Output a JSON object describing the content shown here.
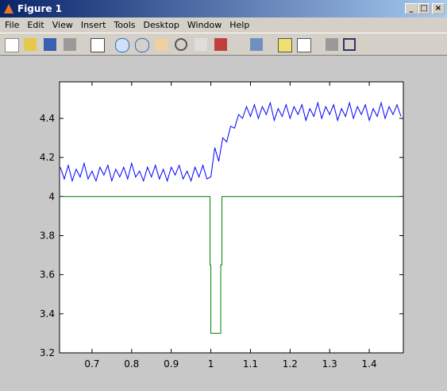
{
  "window": {
    "title": "Figure 1"
  },
  "menu": [
    "File",
    "Edit",
    "View",
    "Insert",
    "Tools",
    "Desktop",
    "Window",
    "Help"
  ],
  "chart_data": {
    "type": "line",
    "xlim": [
      0.618,
      1.486
    ],
    "ylim": [
      3.2,
      4.587
    ],
    "xticks": [
      0.7,
      0.8,
      0.9,
      1,
      1.1,
      1.2,
      1.3,
      1.4
    ],
    "yticks": [
      3.2,
      3.4,
      3.6,
      3.8,
      4,
      4.2,
      4.4
    ],
    "series": [
      {
        "color": "#0000ff",
        "x": [
          0.62,
          0.63,
          0.64,
          0.65,
          0.66,
          0.67,
          0.68,
          0.69,
          0.7,
          0.71,
          0.72,
          0.73,
          0.74,
          0.75,
          0.76,
          0.77,
          0.78,
          0.79,
          0.8,
          0.81,
          0.82,
          0.83,
          0.84,
          0.85,
          0.86,
          0.87,
          0.88,
          0.89,
          0.9,
          0.91,
          0.92,
          0.93,
          0.94,
          0.95,
          0.96,
          0.97,
          0.98,
          0.99,
          1.0,
          1.01,
          1.02,
          1.03,
          1.04,
          1.05,
          1.06,
          1.07,
          1.08,
          1.09,
          1.1,
          1.11,
          1.12,
          1.13,
          1.14,
          1.15,
          1.16,
          1.17,
          1.18,
          1.19,
          1.2,
          1.21,
          1.22,
          1.23,
          1.24,
          1.25,
          1.26,
          1.27,
          1.28,
          1.29,
          1.3,
          1.31,
          1.32,
          1.33,
          1.34,
          1.35,
          1.36,
          1.37,
          1.38,
          1.39,
          1.4,
          1.41,
          1.42,
          1.43,
          1.44,
          1.45,
          1.46,
          1.47,
          1.48
        ],
        "values": [
          4.15,
          4.09,
          4.16,
          4.08,
          4.14,
          4.1,
          4.17,
          4.09,
          4.13,
          4.08,
          4.15,
          4.11,
          4.16,
          4.08,
          4.14,
          4.1,
          4.15,
          4.09,
          4.17,
          4.1,
          4.13,
          4.08,
          4.15,
          4.1,
          4.16,
          4.09,
          4.14,
          4.08,
          4.15,
          4.11,
          4.16,
          4.09,
          4.13,
          4.08,
          4.15,
          4.1,
          4.16,
          4.09,
          4.1,
          4.25,
          4.18,
          4.3,
          4.28,
          4.36,
          4.35,
          4.42,
          4.4,
          4.46,
          4.41,
          4.47,
          4.4,
          4.46,
          4.42,
          4.48,
          4.39,
          4.45,
          4.41,
          4.47,
          4.4,
          4.46,
          4.42,
          4.47,
          4.39,
          4.45,
          4.41,
          4.48,
          4.4,
          4.46,
          4.42,
          4.47,
          4.39,
          4.45,
          4.41,
          4.48,
          4.4,
          4.46,
          4.42,
          4.47,
          4.39,
          4.45,
          4.41,
          4.48,
          4.4,
          4.46,
          4.42,
          4.47,
          4.41
        ]
      },
      {
        "color": "#008000",
        "x": [
          0.618,
          0.998,
          0.998,
          1.0,
          1.0,
          1.025,
          1.025,
          1.028,
          1.028,
          1.486
        ],
        "values": [
          4,
          4,
          3.65,
          3.65,
          3.3,
          3.3,
          3.65,
          3.65,
          4,
          4
        ]
      }
    ]
  }
}
